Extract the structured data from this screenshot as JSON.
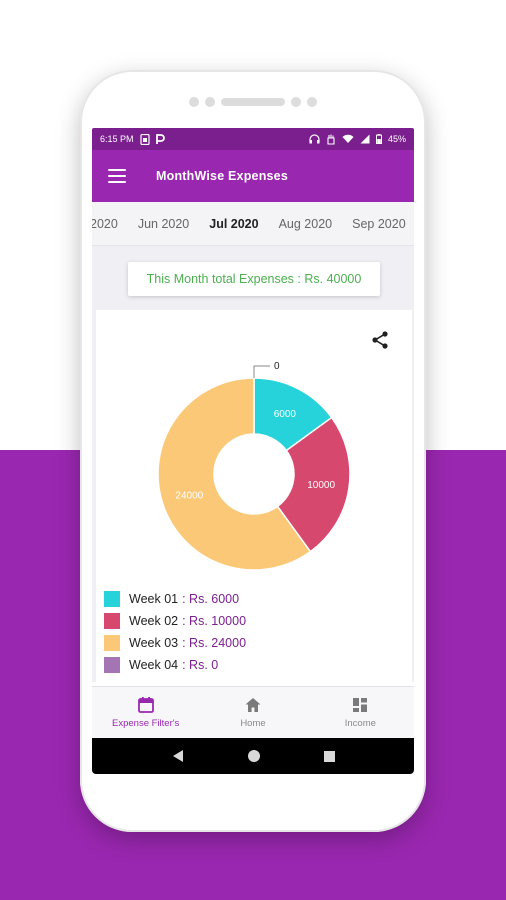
{
  "status_bar": {
    "time": "6:15 PM",
    "battery": "45%",
    "left_icons": [
      "sim-icon",
      "p-icon"
    ],
    "right_icons": [
      "headset-icon",
      "hand-icon",
      "wifi-icon",
      "signal-icon",
      "battery-icon"
    ]
  },
  "app_bar": {
    "title": "MonthWise Expenses",
    "menu_icon": "menu-icon"
  },
  "month_tabs": [
    {
      "label": "2020",
      "active": false
    },
    {
      "label": "Jun 2020",
      "active": false
    },
    {
      "label": "Jul 2020",
      "active": true
    },
    {
      "label": "Aug 2020",
      "active": false
    },
    {
      "label": "Sep 2020",
      "active": false
    }
  ],
  "total": {
    "text": "This Month total Expenses : Rs. 40000"
  },
  "share_icon": "share-icon",
  "chart_data": {
    "type": "pie",
    "donut": true,
    "categories": [
      "Week 01",
      "Week 02",
      "Week 03",
      "Week 04"
    ],
    "values": [
      6000,
      10000,
      24000,
      0
    ],
    "data_labels": [
      "6000",
      "10000",
      "24000",
      "0"
    ],
    "colors": [
      "#26d3da",
      "#d6486d",
      "#fbc878",
      "#a574b2"
    ],
    "legend_placement": "bottom-left"
  },
  "legend": [
    {
      "label": "Week 01",
      "value": ": Rs. 6000",
      "color": "#26d3da"
    },
    {
      "label": "Week 02",
      "value": ": Rs. 10000",
      "color": "#d6486d"
    },
    {
      "label": "Week 03",
      "value": ": Rs. 24000",
      "color": "#fbc878"
    },
    {
      "label": "Week 04",
      "value": ": Rs. 0",
      "color": "#a574b2"
    }
  ],
  "bottom_nav": [
    {
      "label": "Expense Filter's",
      "icon": "calendar-icon",
      "active": true
    },
    {
      "label": "Home",
      "icon": "home-icon",
      "active": false
    },
    {
      "label": "Income",
      "icon": "dashboard-icon",
      "active": false
    }
  ],
  "colors": {
    "primary": "#9a27b0",
    "status_bar": "#7b1f8e",
    "total_text": "#4caf50",
    "background_bottom": "#9a27b0"
  }
}
